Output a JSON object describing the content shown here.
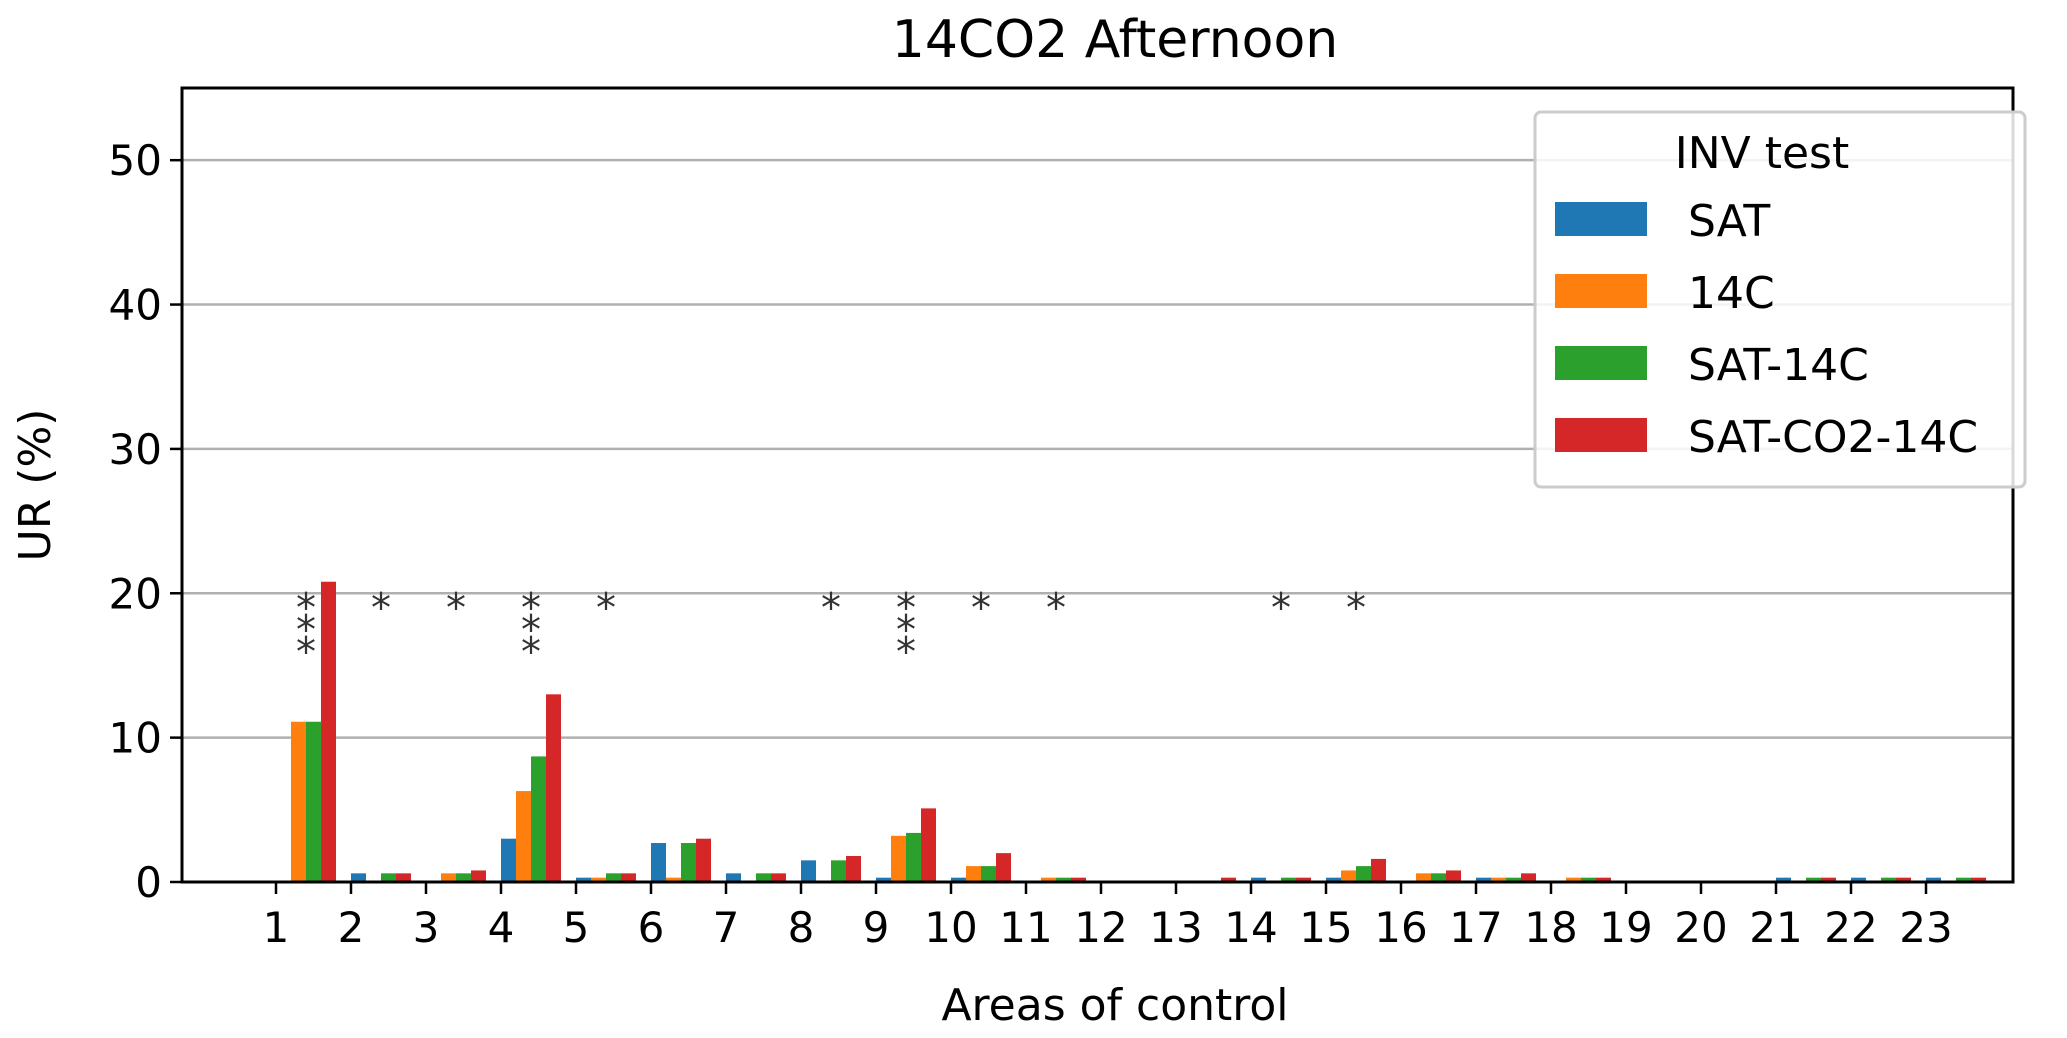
{
  "chart_data": {
    "type": "bar",
    "title": "14CO2 Afternoon",
    "xlabel": "Areas of control",
    "ylabel": "UR (%)",
    "ylim": [
      0,
      55
    ],
    "yticks": [
      0,
      10,
      20,
      30,
      40,
      50
    ],
    "grid": "y",
    "legend": {
      "title": "INV test",
      "placement": "top-right"
    },
    "categories": [
      "1",
      "2",
      "3",
      "4",
      "5",
      "6",
      "7",
      "8",
      "9",
      "10",
      "11",
      "12",
      "13",
      "14",
      "15",
      "16",
      "17",
      "18",
      "19",
      "20",
      "21",
      "22",
      "23"
    ],
    "series": [
      {
        "name": "SAT",
        "color": "#1f77b4",
        "values": [
          0,
          0.6,
          0,
          3.0,
          0.3,
          2.7,
          0.6,
          1.5,
          0.3,
          0.3,
          0,
          0,
          0,
          0.3,
          0.3,
          0,
          0.3,
          0,
          0,
          0,
          0.3,
          0.3,
          0.3
        ]
      },
      {
        "name": "14C",
        "color": "#ff7f0e",
        "values": [
          11.1,
          0,
          0.6,
          6.3,
          0.3,
          0.3,
          0,
          0,
          3.2,
          1.1,
          0.3,
          0,
          0,
          0,
          0.8,
          0.6,
          0.3,
          0.3,
          0,
          0,
          0,
          0,
          0
        ]
      },
      {
        "name": "SAT-14C",
        "color": "#2ca02c",
        "values": [
          11.1,
          0.6,
          0.6,
          8.7,
          0.6,
          2.7,
          0.6,
          1.5,
          3.4,
          1.1,
          0.3,
          0,
          0,
          0.3,
          1.1,
          0.6,
          0.3,
          0.3,
          0,
          0,
          0.3,
          0.3,
          0.3
        ]
      },
      {
        "name": "SAT-CO2-14C",
        "color": "#d62728",
        "values": [
          20.8,
          0.6,
          0.8,
          13.0,
          0.6,
          3.0,
          0.6,
          1.8,
          5.1,
          2.0,
          0.3,
          0,
          0.3,
          0.3,
          1.6,
          0.8,
          0.6,
          0.3,
          0,
          0,
          0.3,
          0.3,
          0.3
        ]
      }
    ],
    "annotations": [
      {
        "category": "1",
        "text": "***"
      },
      {
        "category": "2",
        "text": "*"
      },
      {
        "category": "3",
        "text": "*"
      },
      {
        "category": "4",
        "text": "***"
      },
      {
        "category": "5",
        "text": "*"
      },
      {
        "category": "8",
        "text": "*"
      },
      {
        "category": "9",
        "text": "***"
      },
      {
        "category": "10",
        "text": "*"
      },
      {
        "category": "11",
        "text": "*"
      },
      {
        "category": "14",
        "text": "*"
      },
      {
        "category": "15",
        "text": "*"
      }
    ]
  }
}
